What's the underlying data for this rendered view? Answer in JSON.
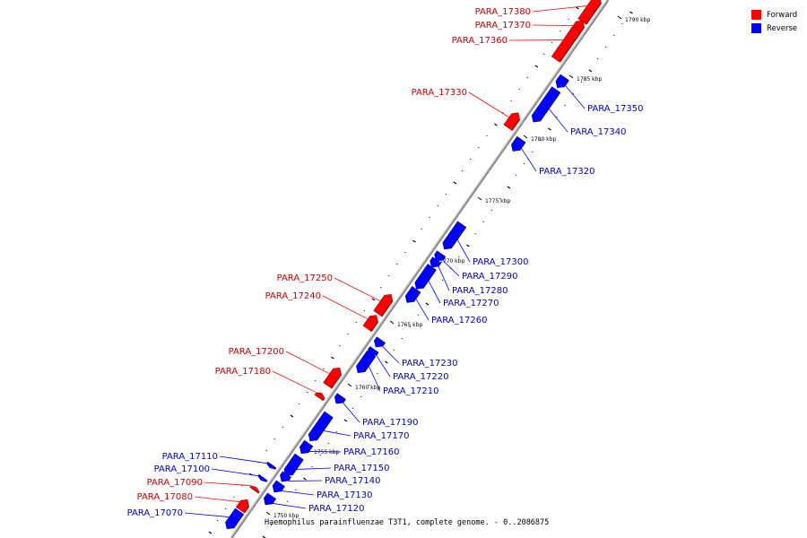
{
  "legend": [
    {
      "label": "Forward",
      "color": "#ff0000"
    },
    {
      "label": "Reverse",
      "color": "#0000ff"
    }
  ],
  "caption": "Haemophilus parainfluenzae T3T1, complete genome. - 0..2086875",
  "kbp_labels": [
    "1790 kbp",
    "1785 kbp",
    "1780 kbp",
    "1775 kbp",
    "1770 kbp",
    "1765 kbp",
    "1760 kbp",
    "1755 kbp",
    "1750 kbp"
  ],
  "genes": [
    {
      "name": "PARA_17380",
      "strand": "forward"
    },
    {
      "name": "PARA_17370",
      "strand": "forward"
    },
    {
      "name": "PARA_17360",
      "strand": "forward"
    },
    {
      "name": "PARA_17350",
      "strand": "reverse"
    },
    {
      "name": "PARA_17340",
      "strand": "reverse"
    },
    {
      "name": "PARA_17330",
      "strand": "forward"
    },
    {
      "name": "PARA_17320",
      "strand": "reverse"
    },
    {
      "name": "PARA_17300",
      "strand": "reverse"
    },
    {
      "name": "PARA_17290",
      "strand": "reverse"
    },
    {
      "name": "PARA_17280",
      "strand": "reverse"
    },
    {
      "name": "PARA_17270",
      "strand": "reverse"
    },
    {
      "name": "PARA_17260",
      "strand": "reverse"
    },
    {
      "name": "PARA_17250",
      "strand": "forward"
    },
    {
      "name": "PARA_17240",
      "strand": "forward"
    },
    {
      "name": "PARA_17230",
      "strand": "reverse"
    },
    {
      "name": "PARA_17220",
      "strand": "reverse"
    },
    {
      "name": "PARA_17210",
      "strand": "reverse"
    },
    {
      "name": "PARA_17200",
      "strand": "forward"
    },
    {
      "name": "PARA_17180",
      "strand": "forward"
    },
    {
      "name": "PARA_17190",
      "strand": "reverse"
    },
    {
      "name": "PARA_17170",
      "strand": "reverse"
    },
    {
      "name": "PARA_17160",
      "strand": "reverse"
    },
    {
      "name": "PARA_17150",
      "strand": "reverse"
    },
    {
      "name": "PARA_17140",
      "strand": "reverse"
    },
    {
      "name": "PARA_17130",
      "strand": "reverse"
    },
    {
      "name": "PARA_17120",
      "strand": "reverse"
    },
    {
      "name": "PARA_17110",
      "strand": "reverse"
    },
    {
      "name": "PARA_17100",
      "strand": "reverse"
    },
    {
      "name": "PARA_17090",
      "strand": "forward"
    },
    {
      "name": "PARA_17080",
      "strand": "forward"
    },
    {
      "name": "PARA_17070",
      "strand": "reverse"
    }
  ]
}
